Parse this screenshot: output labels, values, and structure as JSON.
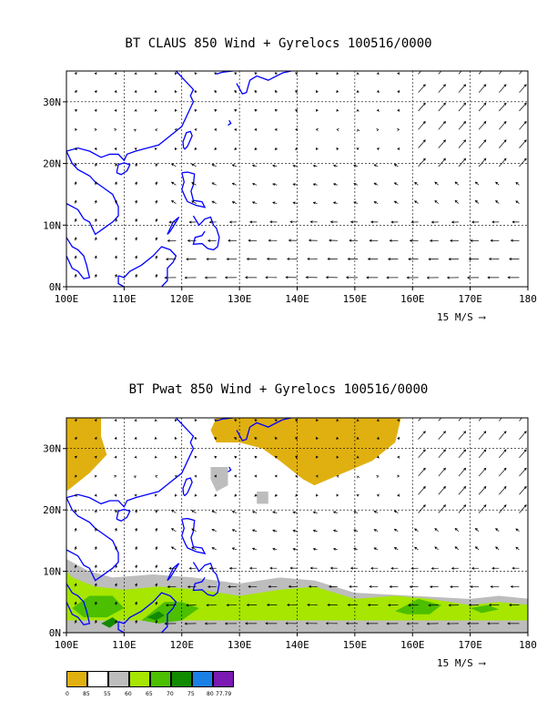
{
  "panel_top": {
    "title": "BT CLAUS 850 Wind + Gyrelocs 100516/0000",
    "x_ticks": [
      "100E",
      "110E",
      "120E",
      "130E",
      "140E",
      "150E",
      "160E",
      "170E",
      "180"
    ],
    "y_ticks": [
      "0N",
      "10N",
      "20N",
      "30N"
    ],
    "scale_label": "15 M/S"
  },
  "panel_bottom": {
    "title": "BT Pwat 850 Wind + Gyrelocs 100516/0000",
    "x_ticks": [
      "100E",
      "110E",
      "120E",
      "130E",
      "140E",
      "150E",
      "160E",
      "170E",
      "180"
    ],
    "y_ticks": [
      "0N",
      "10N",
      "20N",
      "30N"
    ],
    "scale_label": "15 M/S"
  },
  "legend": {
    "labels": [
      "0",
      "85",
      "55",
      "60",
      "65",
      "70",
      "75",
      "80",
      "77.79"
    ],
    "colors": [
      "#e0b010",
      "#ffffff",
      "#bdbdbd",
      "#a6e600",
      "#4cbf00",
      "#128a00",
      "#1a80e6",
      "#7a1ab3"
    ]
  },
  "map_extent": {
    "lon": [
      100,
      180
    ],
    "lat": [
      0,
      35
    ]
  },
  "colors": {
    "coast": "#0000ff",
    "grid": "#000000"
  }
}
